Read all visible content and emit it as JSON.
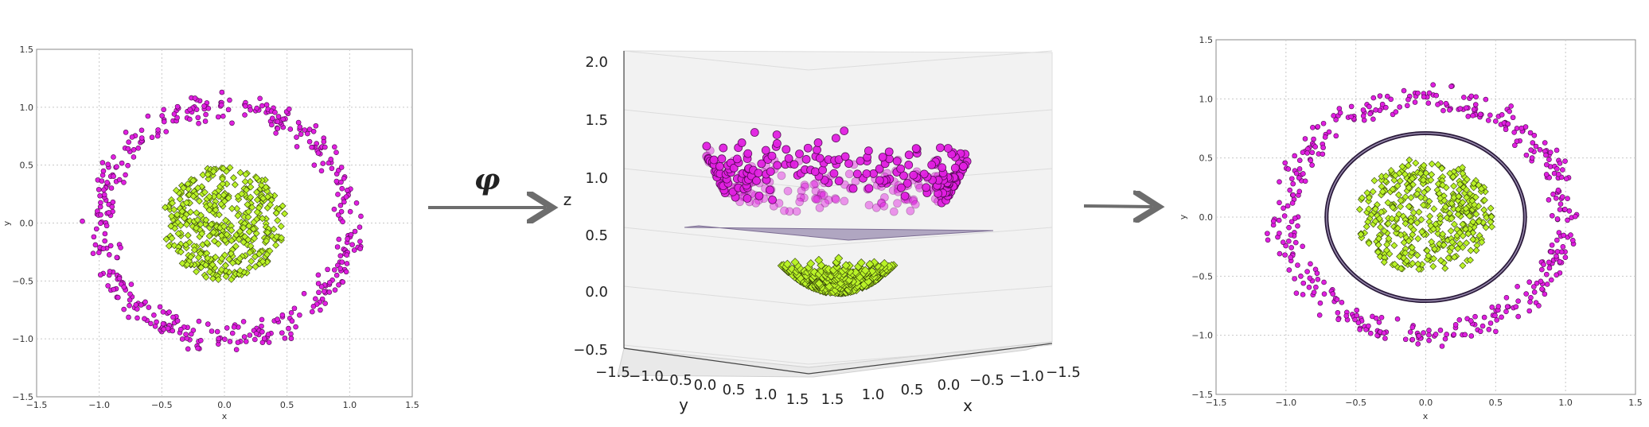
{
  "transform_symbol": "φ",
  "colors": {
    "outer_class": "#e01fe0",
    "inner_class": "#b9f227",
    "outer_edge": "#4a0a4a",
    "inner_edge": "#2e3b0a",
    "plane_fill": "#9a8cb0",
    "boundary": "#2a1a3a",
    "grid": "#c8c8c8",
    "arrow": "#6d6d6d",
    "pane3d": "#f2f2f2"
  },
  "chart_data": [
    {
      "type": "scatter",
      "panel": "left",
      "xlabel": "x",
      "ylabel": "y",
      "xlim": [
        -1.5,
        1.5
      ],
      "ylim": [
        -1.5,
        1.5
      ],
      "xticks": [
        "−1.5",
        "−1.0",
        "−0.5",
        "0.0",
        "0.5",
        "1.0",
        "1.5"
      ],
      "yticks": [
        "−1.5",
        "−1.0",
        "−0.5",
        "0.0",
        "0.5",
        "1.0",
        "1.5"
      ],
      "grid": true,
      "series": [
        {
          "marker": "circle",
          "color": "#e01fe0",
          "distribution": "ring",
          "count": 420,
          "radius_range": [
            0.8,
            1.2
          ]
        },
        {
          "marker": "diamond",
          "color": "#b9f227",
          "distribution": "disk",
          "count": 420,
          "radius_range": [
            0.0,
            0.48
          ]
        }
      ]
    },
    {
      "type": "scatter3d",
      "panel": "middle",
      "xlabel": "x",
      "ylabel": "y",
      "zlabel": "z",
      "xlim": [
        -1.5,
        1.5
      ],
      "ylim": [
        -1.5,
        1.5
      ],
      "zlim": [
        -0.5,
        2.0
      ],
      "xticks": [
        "1.5",
        "1.0",
        "0.5",
        "0.0",
        "−0.5",
        "−1.0",
        "−1.5"
      ],
      "yticks": [
        "−1.5",
        "−1.0",
        "−0.5",
        "0.0",
        "0.5",
        "1.0",
        "1.5"
      ],
      "zticks": [
        "2.0",
        "1.5",
        "1.0",
        "0.5",
        "0.0",
        "−0.5"
      ],
      "separating_plane_z": 0.5,
      "z_formula": "x^2 + y^2",
      "series": [
        {
          "marker": "sphere",
          "color": "#e01fe0",
          "count": 380
        },
        {
          "marker": "diamond",
          "color": "#b9f227",
          "count": 380
        }
      ]
    },
    {
      "type": "scatter",
      "panel": "right",
      "xlabel": "x",
      "ylabel": "y",
      "xlim": [
        -1.5,
        1.5
      ],
      "ylim": [
        -1.5,
        1.5
      ],
      "xticks": [
        "−1.5",
        "−1.0",
        "−0.5",
        "0.0",
        "0.5",
        "1.0",
        "1.5"
      ],
      "yticks": [
        "−1.5",
        "−1.0",
        "−0.5",
        "0.0",
        "0.5",
        "1.0",
        "1.5"
      ],
      "grid": true,
      "decision_boundary": {
        "shape": "circle",
        "radius": 0.71
      },
      "series": [
        {
          "marker": "circle",
          "color": "#e01fe0",
          "distribution": "ring",
          "count": 420,
          "radius_range": [
            0.8,
            1.2
          ]
        },
        {
          "marker": "diamond",
          "color": "#b9f227",
          "distribution": "disk",
          "count": 420,
          "radius_range": [
            0.0,
            0.48
          ]
        }
      ]
    }
  ]
}
